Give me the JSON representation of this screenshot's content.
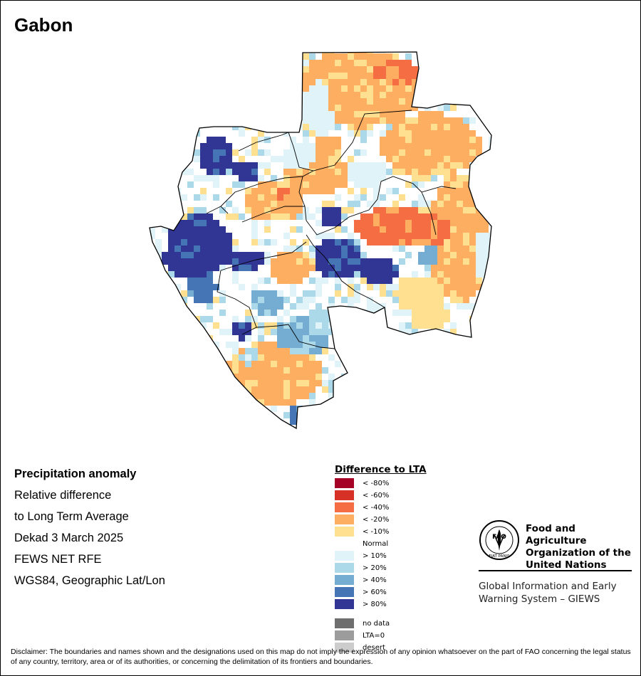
{
  "map": {
    "title": "Gabon"
  },
  "info": {
    "heading": "Precipitation anomaly",
    "line1": "Relative difference",
    "line2": "to Long Term Average",
    "line3": "Dekad 3 March 2025",
    "line4": "FEWS NET RFE",
    "line5": "WGS84, Geographic Lat/Lon"
  },
  "legend": {
    "title": "Difference to LTA",
    "items": [
      {
        "label": "< -80%",
        "color": "#a50026"
      },
      {
        "label": "< -60%",
        "color": "#d73027"
      },
      {
        "label": "< -40%",
        "color": "#f46d43"
      },
      {
        "label": "< -20%",
        "color": "#fdae61"
      },
      {
        "label": "< -10%",
        "color": "#fee090"
      },
      {
        "label": "Normal",
        "color": "#ffffff"
      },
      {
        "label": "> 10%",
        "color": "#e0f3f8"
      },
      {
        "label": "> 20%",
        "color": "#abd9e9"
      },
      {
        "label": "> 40%",
        "color": "#74add1"
      },
      {
        "label": "> 60%",
        "color": "#4575b4"
      },
      {
        "label": "> 80%",
        "color": "#313695"
      }
    ],
    "extra": [
      {
        "label": "no data",
        "color": "#6e6e6e"
      },
      {
        "label": "LTA=0",
        "color": "#9c9c9c"
      },
      {
        "label": "desert",
        "color": "#cccccc"
      }
    ]
  },
  "org": {
    "logo_text": "FAO",
    "logo_motto": "FIAT PANIS",
    "name_line1": "Food and Agriculture",
    "name_line2": "Organization of the",
    "name_line3": "United Nations",
    "system_line1": "Global Information and Early",
    "system_line2": "Warning System – GIEWS"
  },
  "disclaimer": "Disclaimer: The boundaries and names shown and the designations used on this map do not imply the expression of any opinion whatsoever on the part of FAO concerning the legal status of any country, territory, area or of its authorities, or concerning the delimitation of its frontiers and boundaries."
}
